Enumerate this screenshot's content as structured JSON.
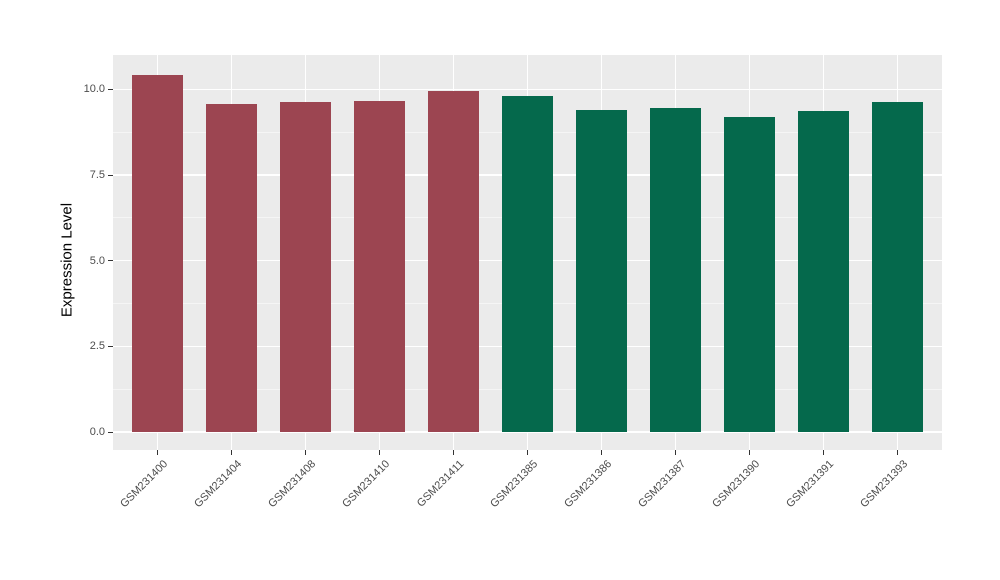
{
  "chart_data": {
    "type": "bar",
    "title": "",
    "xlabel": "",
    "ylabel": "Expression Level",
    "categories": [
      "GSM231400",
      "GSM231404",
      "GSM231408",
      "GSM231410",
      "GSM231411",
      "GSM231385",
      "GSM231386",
      "GSM231387",
      "GSM231390",
      "GSM231391",
      "GSM231393"
    ],
    "values": [
      10.43,
      9.58,
      9.64,
      9.65,
      9.95,
      9.8,
      9.4,
      9.46,
      9.19,
      9.38,
      9.62
    ],
    "bar_colors": [
      "#9C4551",
      "#9C4551",
      "#9C4551",
      "#9C4551",
      "#9C4551",
      "#05694C",
      "#05694C",
      "#05694C",
      "#05694C",
      "#05694C",
      "#05694C"
    ],
    "yticks": [
      {
        "value": 0.0,
        "label": "0.0"
      },
      {
        "value": 2.5,
        "label": "2.5"
      },
      {
        "value": 5.0,
        "label": "5.0"
      },
      {
        "value": 7.5,
        "label": "7.5"
      },
      {
        "value": 10.0,
        "label": "10.0"
      }
    ],
    "ylim": [
      -0.52,
      11.0
    ],
    "grid": "on",
    "legend": "none",
    "panel_bg": "#EBEBEB",
    "grid_major_color": "#FFFFFF",
    "grid_minor_color": "#F5F5F5",
    "axis_text_color": "#4d4d4d",
    "tick_color": "#333333"
  }
}
